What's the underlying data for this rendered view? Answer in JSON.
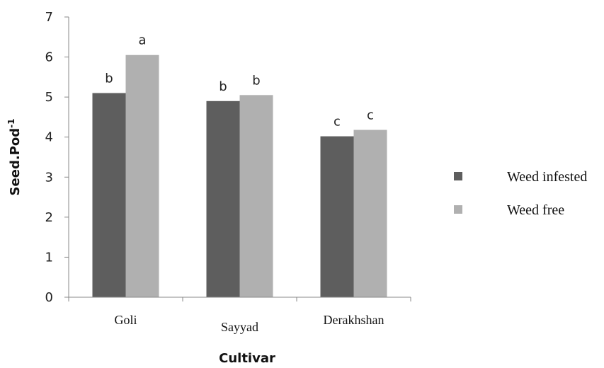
{
  "chart_data": {
    "type": "bar",
    "title": "",
    "xlabel": "Cultivar",
    "ylabel": "Seed.Pod",
    "ylabel_sup": "-1",
    "ylim": [
      0,
      7
    ],
    "yticks": [
      0,
      1,
      2,
      3,
      4,
      5,
      6,
      7
    ],
    "grid": false,
    "legend_position": "right",
    "categories": [
      "Goli",
      "Sayyad",
      "Derakhshan"
    ],
    "series": [
      {
        "name": "Weed infested",
        "color": "#5e5e5e",
        "values": [
          5.1,
          4.9,
          4.02
        ],
        "letters": [
          "b",
          "b",
          "c"
        ]
      },
      {
        "name": "Weed free",
        "color": "#b0b0b0",
        "values": [
          6.05,
          5.05,
          4.18
        ],
        "letters": [
          "a",
          "b",
          "c"
        ]
      }
    ]
  }
}
